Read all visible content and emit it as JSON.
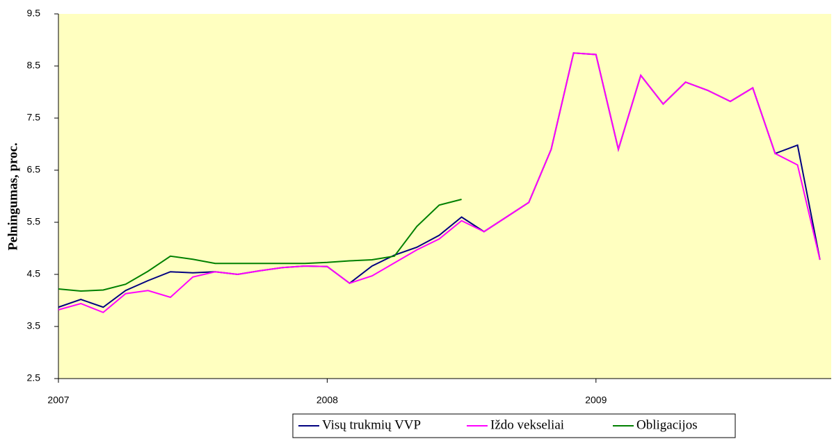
{
  "chart_data": {
    "type": "line",
    "y_label": "Pelningumas, proc.",
    "categories": [
      "2007",
      null,
      null,
      null,
      null,
      null,
      null,
      null,
      null,
      null,
      null,
      null,
      "2008",
      null,
      null,
      null,
      null,
      null,
      null,
      null,
      null,
      null,
      null,
      null,
      "2009",
      null,
      null,
      null,
      null,
      null,
      null,
      null,
      null,
      null,
      null
    ],
    "series": [
      {
        "name": "Visų trukmių VVP",
        "color": "#000080",
        "values": [
          3.87,
          4.02,
          3.87,
          4.19,
          4.38,
          4.55,
          4.53,
          4.55,
          4.5,
          4.57,
          4.63,
          4.66,
          4.65,
          4.33,
          4.66,
          4.87,
          5.02,
          5.25,
          5.6,
          5.32,
          5.6,
          5.88,
          6.9,
          8.75,
          8.72,
          6.9,
          8.32,
          7.77,
          8.19,
          8.03,
          7.82,
          8.08,
          6.82,
          6.98,
          4.78
        ]
      },
      {
        "name": "Iždo vekseliai",
        "color": "#ff00ff",
        "values": [
          3.82,
          3.94,
          3.77,
          4.13,
          4.19,
          4.06,
          4.45,
          4.55,
          4.5,
          4.57,
          4.63,
          4.66,
          4.65,
          4.33,
          4.47,
          4.72,
          4.97,
          5.18,
          5.53,
          5.32,
          5.6,
          5.88,
          6.9,
          8.75,
          8.72,
          6.9,
          8.32,
          7.77,
          8.19,
          8.03,
          7.82,
          8.08,
          6.82,
          6.6,
          4.78
        ]
      },
      {
        "name": "Obligacijos",
        "color": "#008000",
        "values": [
          4.22,
          4.18,
          4.2,
          4.31,
          4.56,
          4.85,
          4.79,
          4.71,
          4.71,
          4.71,
          4.71,
          4.71,
          4.73,
          4.76,
          4.78,
          4.85,
          5.42,
          5.83,
          5.94,
          null,
          null,
          null,
          null,
          null,
          null,
          null,
          null,
          null,
          null,
          null,
          null,
          null,
          null,
          null,
          null
        ]
      }
    ],
    "ylim": [
      2.5,
      9.5
    ],
    "yticks": [
      2.5,
      3.5,
      4.5,
      5.5,
      6.5,
      7.5,
      8.5,
      9.5
    ],
    "legend": "bottom",
    "background": "#ffffc0"
  }
}
